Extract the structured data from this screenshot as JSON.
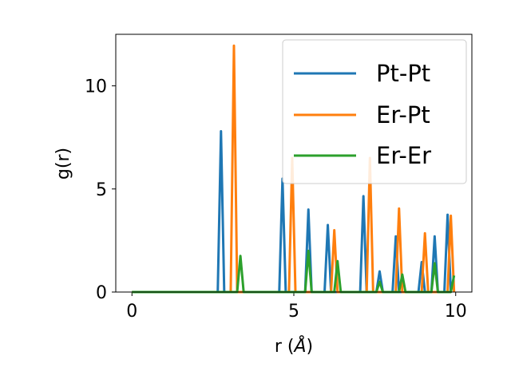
{
  "chart_data": {
    "type": "line",
    "title": "",
    "xlabel_main": "r (",
    "xlabel_unit": "Å",
    "xlabel_close": ")",
    "ylabel": "g(r)",
    "xlim": [
      -0.5,
      10.5
    ],
    "ylim": [
      0,
      12.5
    ],
    "xticks": [
      0,
      5,
      10
    ],
    "yticks": [
      0,
      5,
      10
    ],
    "grid": false,
    "legend_position": "top-right",
    "series": [
      {
        "name": "Pt-Pt",
        "color": "#1f77b4",
        "x": [
          0,
          2.65,
          2.75,
          2.85,
          4.55,
          4.65,
          4.75,
          5.35,
          5.45,
          5.55,
          5.95,
          6.05,
          6.15,
          7.05,
          7.15,
          7.25,
          7.55,
          7.65,
          7.75,
          8.05,
          8.15,
          8.25,
          8.85,
          8.95,
          9.05,
          9.25,
          9.35,
          9.45,
          9.65,
          9.75,
          9.85
        ],
        "y": [
          0,
          0,
          7.8,
          0,
          0,
          5.5,
          0,
          0,
          4.0,
          0,
          0,
          3.25,
          0,
          0,
          4.65,
          0,
          0,
          1.0,
          0,
          0,
          2.7,
          0,
          0,
          1.45,
          0,
          0,
          2.7,
          0,
          0,
          3.75,
          0
        ]
      },
      {
        "name": "Er-Pt",
        "color": "#ff7f0e",
        "x": [
          0,
          3.05,
          3.15,
          3.25,
          4.85,
          4.95,
          5.05,
          6.15,
          6.25,
          6.35,
          7.25,
          7.35,
          7.45,
          8.15,
          8.25,
          8.35,
          8.95,
          9.05,
          9.15,
          9.75,
          9.85,
          9.95
        ],
        "y": [
          0,
          0,
          11.95,
          0,
          0,
          6.5,
          0,
          0,
          3.0,
          0,
          0,
          6.5,
          0,
          0,
          4.05,
          0,
          0,
          2.85,
          0,
          0,
          3.7,
          0
        ]
      },
      {
        "name": "Er-Er",
        "color": "#2ca02c",
        "x": [
          0,
          3.25,
          3.35,
          3.45,
          5.35,
          5.45,
          5.55,
          6.25,
          6.35,
          6.45,
          7.55,
          7.65,
          7.75,
          8.25,
          8.35,
          8.45,
          9.25,
          9.35,
          9.45,
          9.85,
          9.95
        ],
        "y": [
          0,
          0,
          1.75,
          0,
          0,
          2.0,
          0,
          0,
          1.5,
          0,
          0,
          0.5,
          0,
          0,
          0.85,
          0,
          0,
          1.4,
          0,
          0,
          0.8
        ]
      }
    ]
  }
}
